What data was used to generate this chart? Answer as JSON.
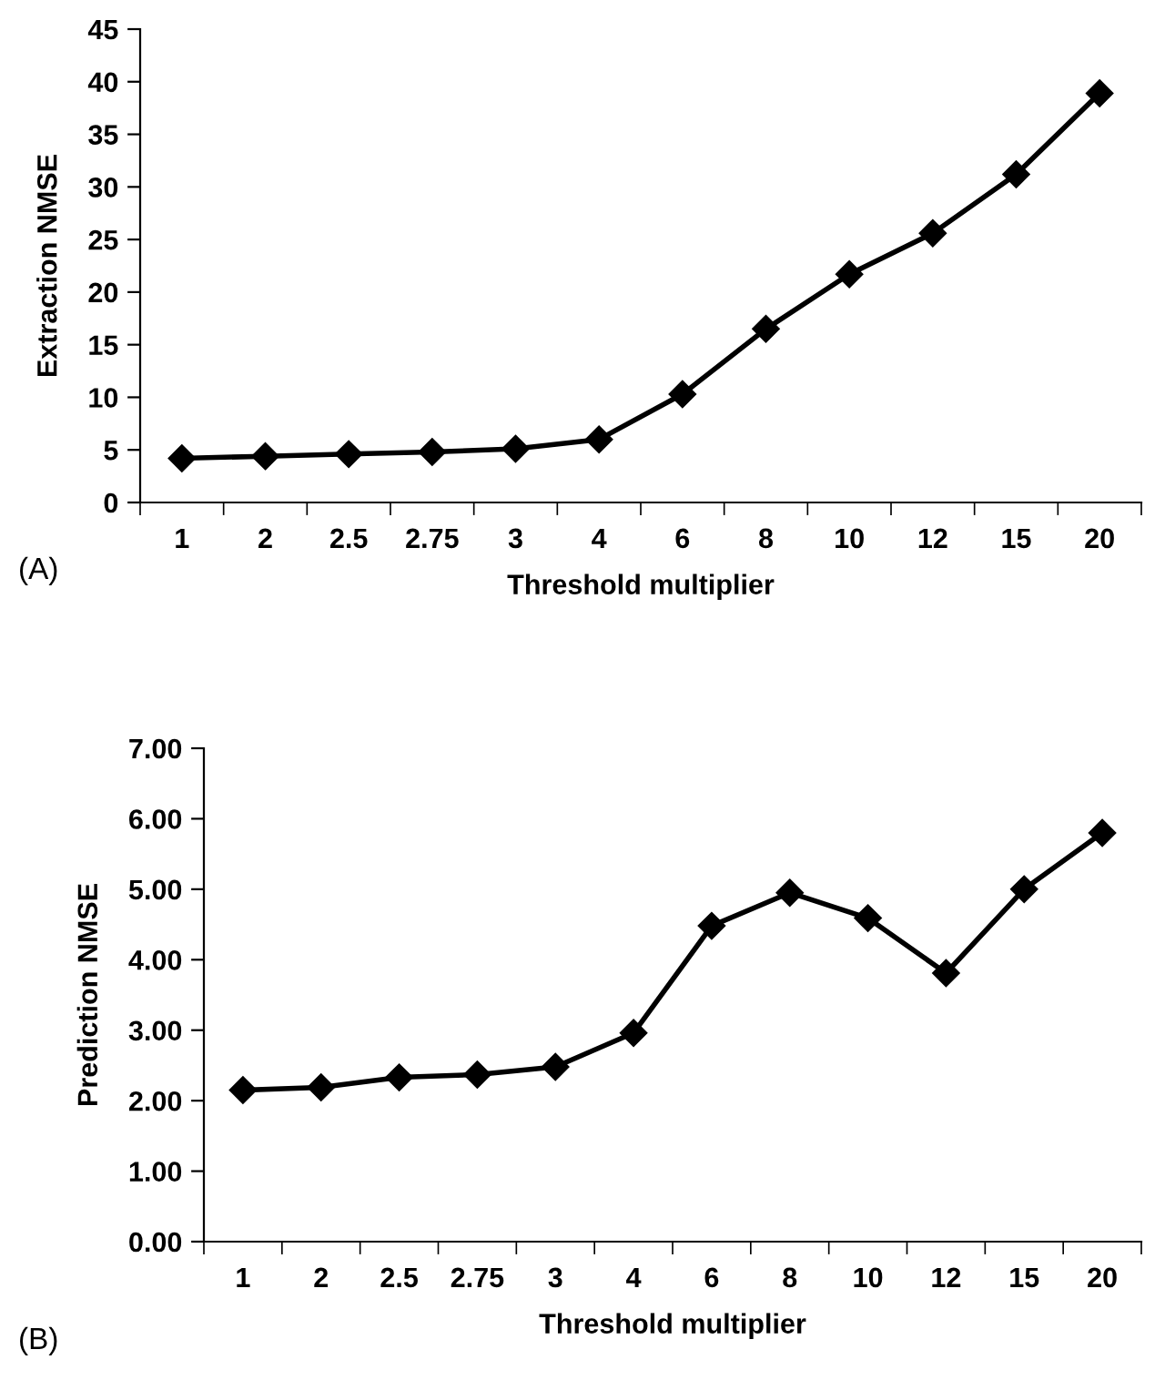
{
  "chart_data": [
    {
      "type": "line",
      "xlabel": "Threshold multiplier",
      "ylabel": "Extraction NMSE",
      "annotations": [
        "(A)"
      ],
      "categories": [
        "1",
        "2",
        "2.5",
        "2.75",
        "3",
        "4",
        "6",
        "8",
        "10",
        "12",
        "15",
        "20"
      ],
      "series": [
        {
          "color": "#000000",
          "values": [
            4.2,
            4.4,
            4.6,
            4.8,
            5.1,
            6.0,
            10.3,
            16.5,
            21.7,
            25.6,
            31.2,
            38.9
          ]
        }
      ],
      "ylim": [
        0,
        45
      ],
      "yticks": [
        0,
        5,
        10,
        15,
        20,
        25,
        30,
        35,
        40,
        45
      ],
      "grid": false,
      "legend": false,
      "marker": "diamond",
      "line_style": "solid"
    },
    {
      "type": "line",
      "xlabel": "Threshold multiplier",
      "ylabel": "Prediction NMSE",
      "annotations": [
        "(B)"
      ],
      "categories": [
        "1",
        "2",
        "2.5",
        "2.75",
        "3",
        "4",
        "6",
        "8",
        "10",
        "12",
        "15",
        "20"
      ],
      "series": [
        {
          "color": "#000000",
          "values": [
            2.15,
            2.19,
            2.33,
            2.37,
            2.48,
            2.96,
            4.48,
            4.95,
            4.59,
            3.81,
            5.0,
            5.8
          ]
        }
      ],
      "ylim": [
        0,
        7
      ],
      "yticks": [
        {
          "value": 0,
          "label": "0.00"
        },
        {
          "value": 1,
          "label": "1.00"
        },
        {
          "value": 2,
          "label": "2.00"
        },
        {
          "value": 3,
          "label": "3.00"
        },
        {
          "value": 4,
          "label": "4.00"
        },
        {
          "value": 5,
          "label": "5.00"
        },
        {
          "value": 6,
          "label": "6.00"
        },
        {
          "value": 7,
          "label": "7.00"
        }
      ],
      "grid": false,
      "legend": false,
      "marker": "diamond",
      "line_style": "solid"
    }
  ]
}
